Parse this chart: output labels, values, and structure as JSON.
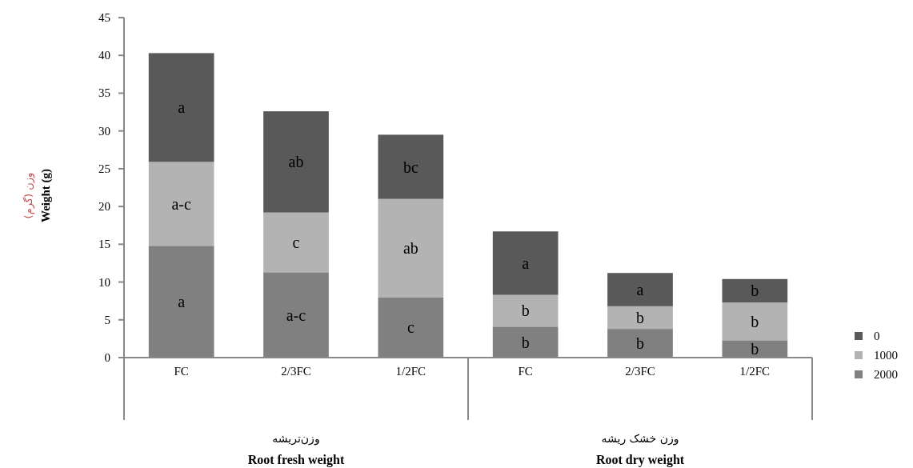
{
  "chart_data": {
    "type": "bar",
    "stacked": true,
    "ylabel": "وزن (گرم)\nWeight (g)",
    "categories": [
      "FC",
      "2/3FC",
      "1/2FC",
      "FC",
      "2/3FC",
      "1/2FC"
    ],
    "series": [
      {
        "name": "2000",
        "color": "#808080",
        "values": [
          14.8,
          11.3,
          8.0,
          4.1,
          3.8,
          2.3
        ],
        "value_labels": [
          "a",
          "a-c",
          "c",
          "b",
          "b",
          "b"
        ]
      },
      {
        "name": "1000",
        "color": "#b3b3b3",
        "values": [
          11.1,
          7.9,
          13.0,
          4.2,
          3.0,
          5.0
        ],
        "value_labels": [
          "a-c",
          "c",
          "ab",
          "b",
          "b",
          "b"
        ]
      },
      {
        "name": "0",
        "color": "#595959",
        "values": [
          14.4,
          13.4,
          8.5,
          8.4,
          4.4,
          3.1
        ],
        "value_labels": [
          "a",
          "ab",
          "bc",
          "a",
          "a",
          "b"
        ]
      }
    ],
    "ylim": [
      0,
      45
    ],
    "yticks": [
      0,
      5,
      10,
      15,
      20,
      25,
      30,
      35,
      40,
      45
    ],
    "annotations": [
      "وزن‌تریشه\nRoot fresh weight",
      "وزن خشک ریشه\nRoot dry weight"
    ],
    "legend": "right",
    "grid": false
  }
}
